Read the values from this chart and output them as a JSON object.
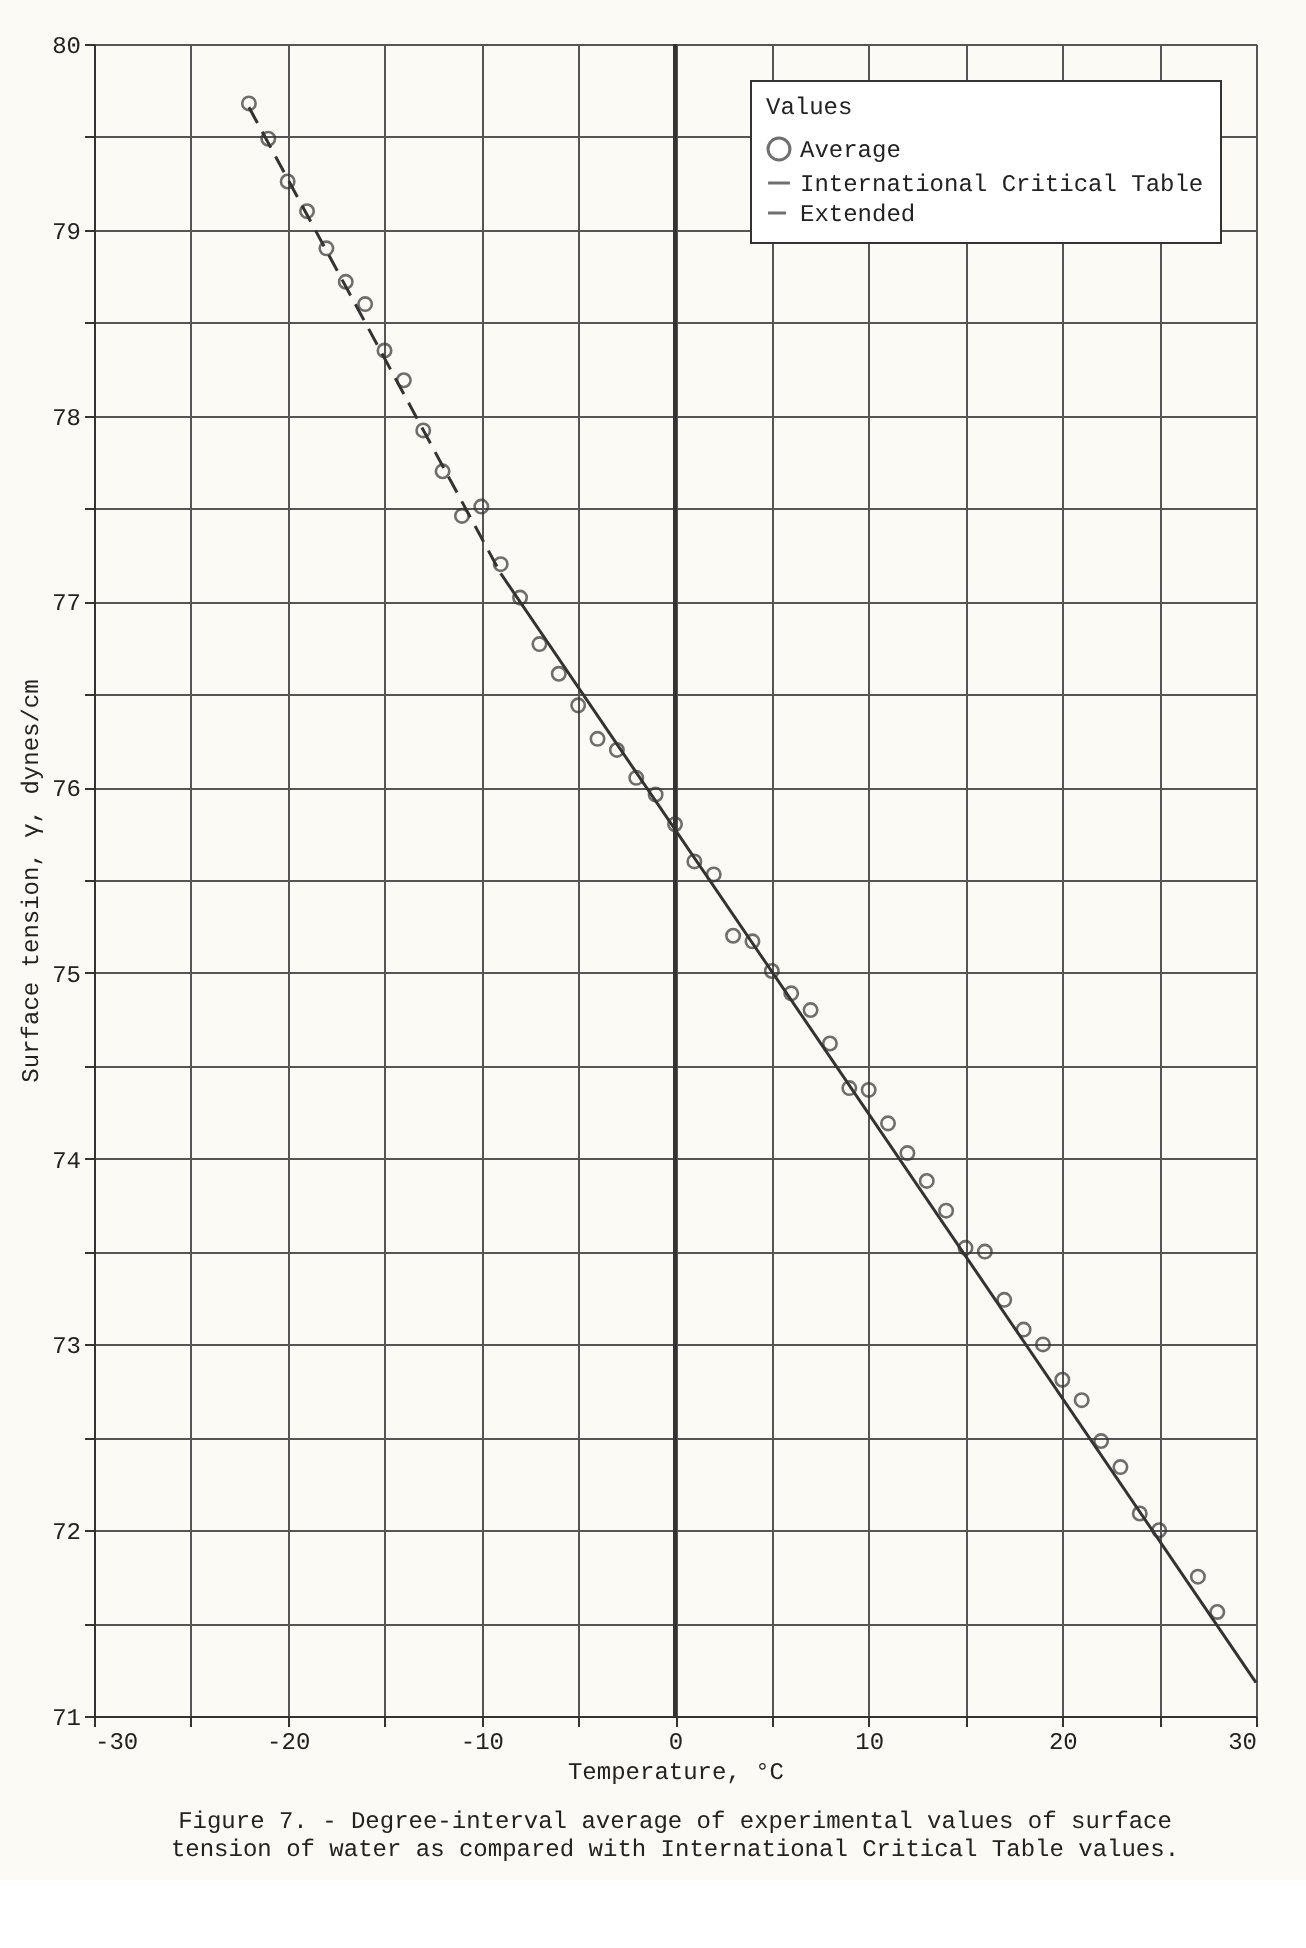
{
  "chart_data": {
    "type": "scatter",
    "xlabel": "Temperature, °C",
    "ylabel": "Surface tension, γ, dynes/cm",
    "legend_title": "Values",
    "annotations": [
      "Figure 7. - Degree-interval average of experimental values of surface tension of water as compared with International Critical Table values."
    ],
    "x": [
      -22,
      -21,
      -20,
      -19,
      -18,
      -17,
      -16,
      -15,
      -14,
      -13,
      -12,
      -11,
      -10,
      -9,
      -8,
      -7,
      -6,
      -5,
      -4,
      -3,
      -2,
      -1,
      0,
      1,
      2,
      3,
      4,
      5,
      6,
      7,
      8,
      9,
      10,
      11,
      12,
      13,
      14,
      15,
      16,
      17,
      18,
      19,
      20,
      21,
      22,
      23,
      24,
      25,
      27,
      28
    ],
    "series": [
      {
        "name": "Average",
        "type": "scatter",
        "color": "#333333",
        "marker": "circle",
        "values": [
          79.68,
          79.49,
          79.26,
          79.1,
          78.9,
          78.72,
          78.6,
          78.35,
          78.19,
          77.92,
          77.7,
          77.46,
          77.51,
          77.2,
          77.02,
          76.77,
          76.61,
          76.44,
          76.26,
          76.2,
          76.05,
          75.96,
          75.8,
          75.6,
          75.53,
          75.2,
          75.17,
          75.01,
          74.89,
          74.8,
          74.62,
          74.38,
          74.37,
          74.19,
          74.03,
          73.88,
          73.72,
          73.52,
          73.5,
          73.24,
          73.08,
          73.0,
          72.81,
          72.7,
          72.48,
          72.34,
          72.09,
          72.0,
          71.75,
          71.56
        ]
      },
      {
        "name": "International Critical Table",
        "type": "line",
        "color": "#333333",
        "line_style": "solid",
        "x": [
          -9,
          30
        ],
        "values": [
          77.15,
          71.18
        ]
      },
      {
        "name": "Extended",
        "type": "line",
        "color": "#333333",
        "line_style": "dashed",
        "x": [
          -22,
          -9
        ],
        "values": [
          79.66,
          77.15
        ]
      }
    ],
    "xlim": [
      -30,
      30
    ],
    "ylim": [
      71,
      80
    ],
    "xticks": [
      -30,
      {
        "value": -25,
        "label": null
      },
      -20,
      {
        "value": -15,
        "label": null
      },
      -10,
      {
        "value": -5,
        "label": null
      },
      0,
      {
        "value": 5,
        "label": null
      },
      10,
      {
        "value": 15,
        "label": null
      },
      20,
      {
        "value": 25,
        "label": null
      },
      30
    ],
    "yticks": [
      71,
      {
        "value": 71.5,
        "label": null
      },
      72,
      {
        "value": 72.5,
        "label": null
      },
      73,
      {
        "value": 73.5,
        "label": null
      },
      74,
      {
        "value": 74.5,
        "label": null
      },
      75,
      {
        "value": 75.5,
        "label": null
      },
      76,
      {
        "value": 76.5,
        "label": null
      },
      77,
      {
        "value": 77.5,
        "label": null
      },
      78,
      {
        "value": 78.5,
        "label": null
      },
      79,
      {
        "value": 79.5,
        "label": null
      },
      80
    ],
    "ref_lines": [
      {
        "axis": "x",
        "value": 0,
        "label": null,
        "color": "#333333"
      }
    ],
    "grid": true,
    "legend": "top right"
  }
}
